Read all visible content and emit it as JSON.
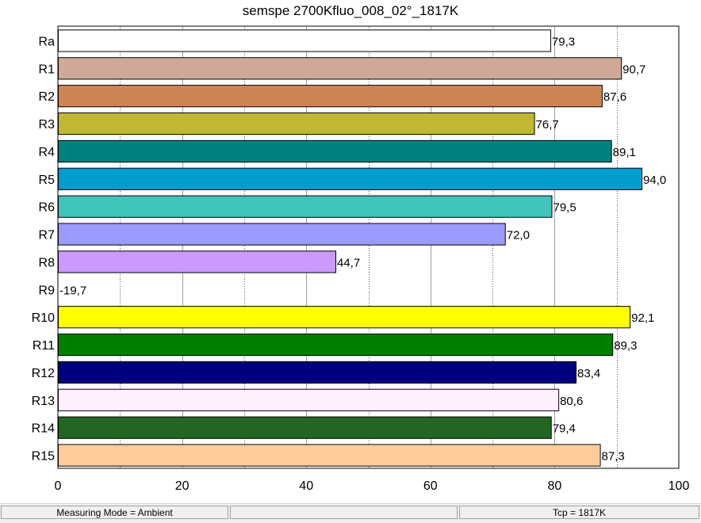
{
  "chart_data": {
    "type": "bar",
    "orientation": "horizontal",
    "title": "semspe 2700Kfluo_008_02°_1817K",
    "categories": [
      "Ra",
      "R1",
      "R2",
      "R3",
      "R4",
      "R5",
      "R6",
      "R7",
      "R8",
      "R9",
      "R10",
      "R11",
      "R12",
      "R13",
      "R14",
      "R15"
    ],
    "values": [
      79.3,
      90.7,
      87.6,
      76.7,
      89.1,
      94.0,
      79.5,
      72.0,
      44.7,
      -19.7,
      92.1,
      89.3,
      83.4,
      80.6,
      79.4,
      87.3
    ],
    "value_labels": [
      "79,3",
      "90,7",
      "87,6",
      "76,7",
      "89,1",
      "94,0",
      "79,5",
      "72,0",
      "44,7",
      "-19,7",
      "92,1",
      "89,3",
      "83,4",
      "80,6",
      "79,4",
      "87,3"
    ],
    "colors": [
      "#ffffff",
      "#cfa898",
      "#cd8452",
      "#c0b834",
      "#008080",
      "#009cd0",
      "#40c4bc",
      "#9a9aff",
      "#cc99ff",
      "#ff0000",
      "#ffff00",
      "#008000",
      "#000080",
      "#fff0ff",
      "#226622",
      "#ffcc99"
    ],
    "xlim": [
      0,
      100
    ],
    "x_ticks": [
      0,
      20,
      40,
      60,
      80,
      100
    ],
    "x_tick_labels": [
      "0",
      "20",
      "40",
      "60",
      "80",
      "100"
    ],
    "grid": true,
    "xlabel": "",
    "ylabel": ""
  },
  "status": {
    "mode": "Measuring Mode = Ambient",
    "middle": "",
    "tcp": "Tcp = 1817K"
  }
}
